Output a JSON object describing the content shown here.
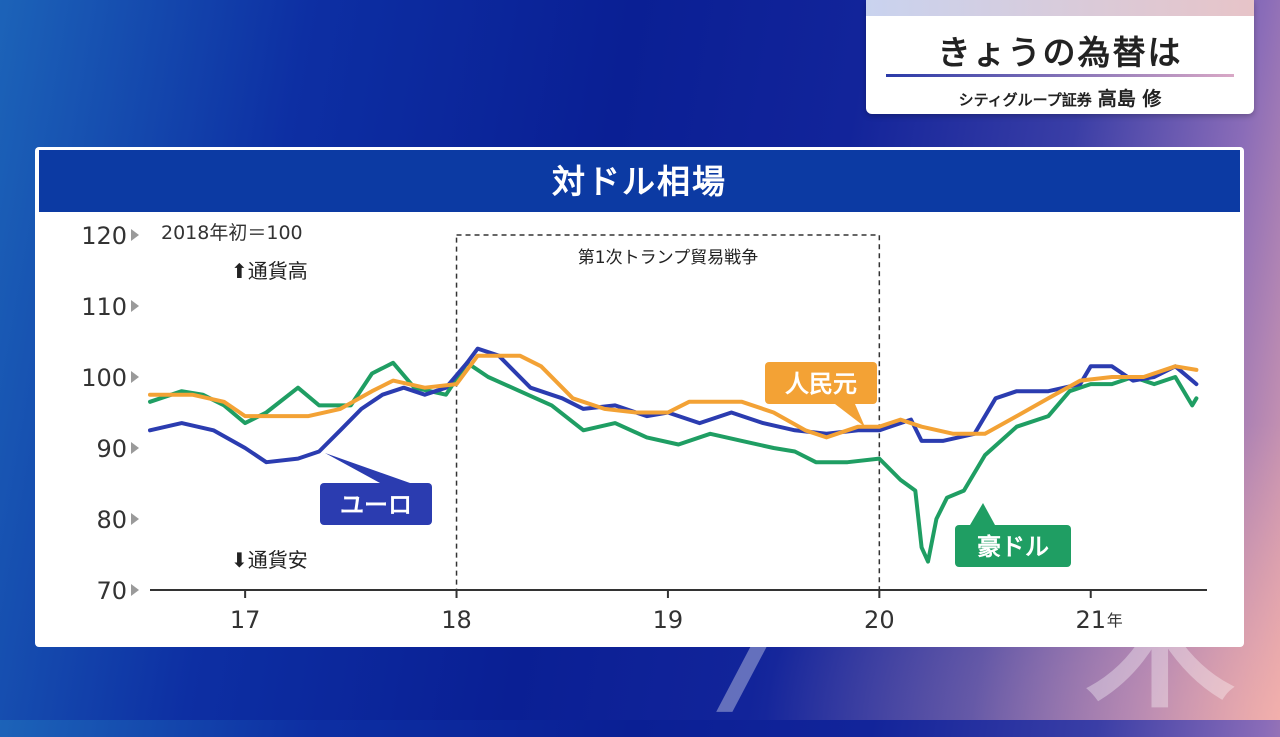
{
  "banner": {
    "title": "きょうの為替は",
    "sub_org": "シティグループ証券",
    "sub_name": "高島 修"
  },
  "panel": {
    "title": "対ドル相場"
  },
  "chart_data": {
    "type": "line",
    "index_note": "2018年初＝100",
    "up_label": "⬆通貨高",
    "down_label": "⬇通貨安",
    "y_ticks": [
      70,
      80,
      90,
      100,
      110,
      120
    ],
    "ylim": [
      70,
      120
    ],
    "x_ticks": [
      "17",
      "18",
      "19",
      "20",
      "21"
    ],
    "x_suffix": "年",
    "xlim": [
      2016.55,
      2021.55
    ],
    "highlight": {
      "label": "第1次トランプ貿易戦争",
      "x_range": [
        2018.0,
        2020.0
      ]
    },
    "series": [
      {
        "name": "ユーロ",
        "color": "#2b3cb0",
        "x": [
          2016.55,
          2016.7,
          2016.85,
          2017.0,
          2017.1,
          2017.25,
          2017.35,
          2017.45,
          2017.55,
          2017.65,
          2017.75,
          2017.85,
          2017.95,
          2018.05,
          2018.1,
          2018.2,
          2018.35,
          2018.5,
          2018.6,
          2018.75,
          2018.9,
          2019.0,
          2019.15,
          2019.3,
          2019.45,
          2019.6,
          2019.75,
          2019.9,
          2020.0,
          2020.15,
          2020.2,
          2020.3,
          2020.45,
          2020.55,
          2020.65,
          2020.8,
          2020.95,
          2021.0,
          2021.1,
          2021.2,
          2021.3,
          2021.4,
          2021.5
        ],
        "y": [
          92.5,
          93.5,
          92.5,
          90,
          88,
          88.5,
          89.5,
          92.5,
          95.5,
          97.5,
          98.5,
          97.5,
          98.5,
          102,
          104,
          103,
          98.5,
          97,
          95.5,
          96,
          94.5,
          95,
          93.5,
          95,
          93.5,
          92.5,
          92,
          92.5,
          92.5,
          94,
          91,
          91,
          92,
          97,
          98,
          98,
          99,
          101.5,
          101.5,
          99.5,
          100,
          101.5,
          99
        ]
      },
      {
        "name": "人民元",
        "color": "#f3a235",
        "x": [
          2016.55,
          2016.75,
          2016.9,
          2017.0,
          2017.15,
          2017.3,
          2017.45,
          2017.6,
          2017.7,
          2017.85,
          2018.0,
          2018.1,
          2018.2,
          2018.3,
          2018.4,
          2018.55,
          2018.7,
          2018.85,
          2019.0,
          2019.1,
          2019.25,
          2019.35,
          2019.5,
          2019.65,
          2019.75,
          2019.9,
          2020.0,
          2020.1,
          2020.2,
          2020.35,
          2020.5,
          2020.65,
          2020.8,
          2020.95,
          2021.1,
          2021.25,
          2021.4,
          2021.5
        ],
        "y": [
          97.5,
          97.5,
          96.5,
          94.5,
          94.5,
          94.5,
          95.5,
          98,
          99.5,
          98.5,
          99,
          103,
          103,
          103,
          101.5,
          97,
          95.5,
          95,
          95,
          96.5,
          96.5,
          96.5,
          95,
          92.5,
          91.5,
          93,
          93,
          94,
          93,
          92,
          92,
          94.5,
          97,
          99.5,
          100,
          100,
          101.5,
          101
        ]
      },
      {
        "name": "豪ドル",
        "color": "#1f9e63",
        "x": [
          2016.55,
          2016.7,
          2016.8,
          2016.9,
          2017.0,
          2017.1,
          2017.25,
          2017.35,
          2017.5,
          2017.6,
          2017.7,
          2017.8,
          2017.95,
          2018.05,
          2018.15,
          2018.3,
          2018.45,
          2018.6,
          2018.75,
          2018.9,
          2019.05,
          2019.2,
          2019.35,
          2019.5,
          2019.6,
          2019.7,
          2019.85,
          2020.0,
          2020.1,
          2020.17,
          2020.2,
          2020.23,
          2020.27,
          2020.32,
          2020.4,
          2020.5,
          2020.65,
          2020.8,
          2020.9,
          2021.0,
          2021.1,
          2021.2,
          2021.3,
          2021.4,
          2021.48,
          2021.5
        ],
        "y": [
          96.5,
          98,
          97.5,
          96,
          93.5,
          95,
          98.5,
          96,
          96,
          100.5,
          102,
          98.5,
          97.5,
          102,
          100,
          98,
          96,
          92.5,
          93.5,
          91.5,
          90.5,
          92,
          91,
          90,
          89.5,
          88,
          88,
          88.5,
          85.5,
          84,
          76,
          74,
          80,
          83,
          84,
          89,
          93,
          94.5,
          98,
          99,
          99,
          100,
          99,
          100,
          96,
          97
        ]
      }
    ],
    "labels": [
      "ユーロ",
      "人民元",
      "豪ドル"
    ]
  }
}
